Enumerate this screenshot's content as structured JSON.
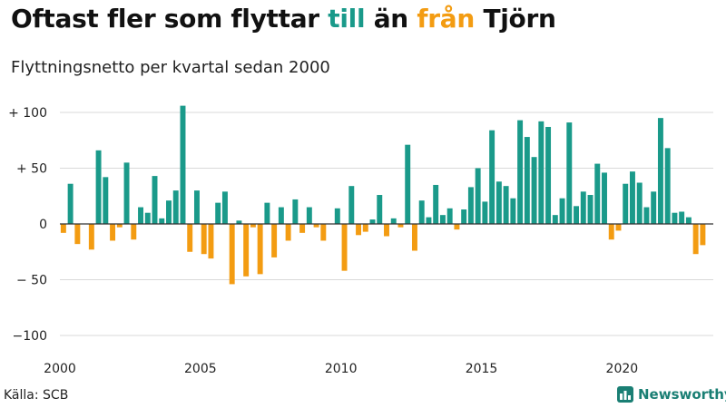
{
  "title": {
    "prefix": "Oftast fler som flyttar ",
    "to": "till",
    "middle": " än ",
    "from": "från",
    "suffix": " Tjörn"
  },
  "subtitle": "Flyttningsnetto per kvartal sedan 2000",
  "source": "Källa: SCB",
  "brand": "Newsworthy",
  "colors": {
    "positive": "#1a9a8a",
    "negative": "#f39c12",
    "grid": "#d9d9d9",
    "zero_line": "#333333"
  },
  "chart_data": {
    "type": "bar",
    "ylim": [
      -100,
      110
    ],
    "yticks": [
      {
        "value": 100,
        "label": "+ 100"
      },
      {
        "value": 50,
        "label": "+ 50"
      },
      {
        "value": 0,
        "label": "0"
      },
      {
        "value": -50,
        "label": "− 50"
      },
      {
        "value": -100,
        "label": "−100"
      }
    ],
    "xticks": [
      "2000",
      "2005",
      "2010",
      "2015",
      "2020"
    ],
    "xlim_years": [
      2000,
      2023.25
    ],
    "series": [
      {
        "start_year": 2000,
        "start_quarter": 1,
        "values": [
          -8,
          36,
          -18,
          0,
          -23,
          66,
          42,
          -15,
          -3,
          55,
          -14,
          15,
          10,
          43,
          5,
          21,
          30,
          106,
          -25,
          30,
          -27,
          -31,
          19,
          29,
          -54,
          3,
          -47,
          -3,
          -45,
          19,
          -30,
          15,
          -15,
          22,
          -8,
          15,
          -3,
          -15,
          0,
          14,
          -42,
          34,
          -10,
          -7,
          4,
          26,
          -11,
          5,
          -3,
          71,
          -24,
          21,
          6,
          35,
          8,
          14,
          -5,
          13,
          33,
          50,
          20,
          84,
          38,
          34,
          23,
          93,
          78,
          60,
          92,
          87,
          8,
          23,
          91,
          16,
          29,
          26,
          54,
          46,
          -14,
          -6,
          36,
          47,
          37,
          15,
          29,
          95,
          68,
          10,
          11,
          6,
          -27,
          -19
        ]
      }
    ]
  }
}
